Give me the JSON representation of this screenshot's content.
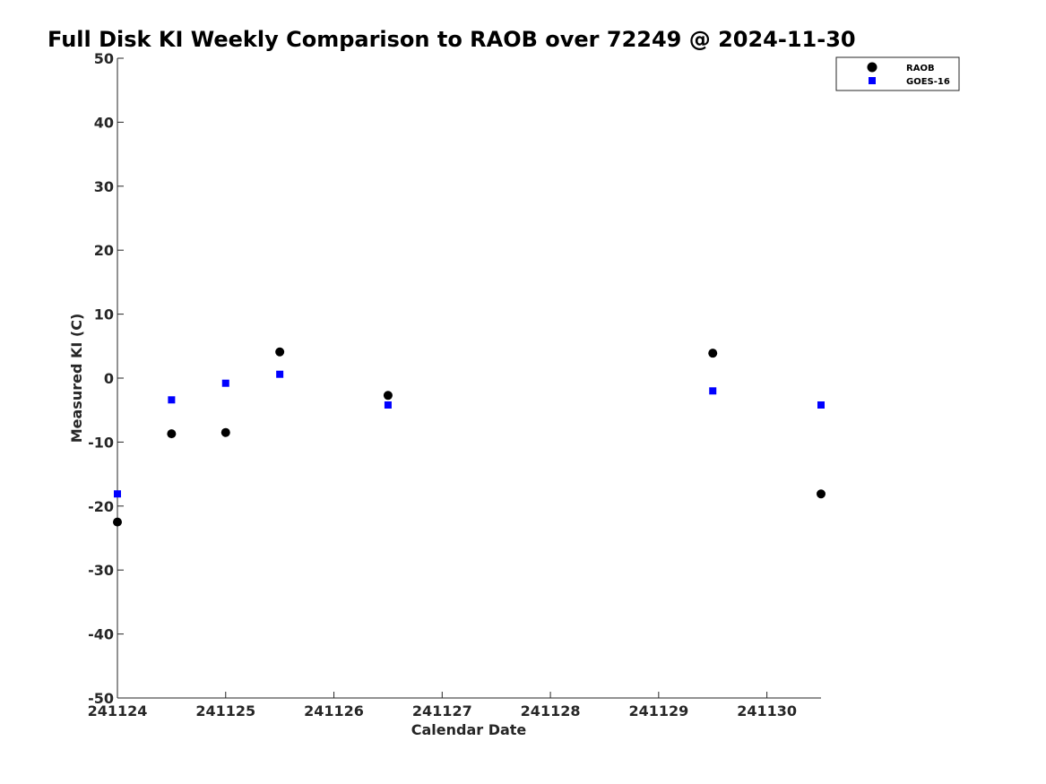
{
  "chart_data": {
    "type": "scatter",
    "title": "Full Disk KI Weekly Comparison to RAOB over 72249 @ 2024-11-30",
    "xlabel": "Calendar Date",
    "ylabel": "Measured KI (C)",
    "x_ticks": [
      "241124",
      "241125",
      "241126",
      "241127",
      "241128",
      "241129",
      "241130"
    ],
    "xlim": [
      "2024-11-24T00:00",
      "2024-11-30T12:00"
    ],
    "ylim": [
      -50,
      50
    ],
    "y_ticks": [
      50,
      40,
      30,
      20,
      10,
      0,
      -10,
      -20,
      -30,
      -40,
      -50
    ],
    "grid": false,
    "legend_position": "top-right",
    "series": [
      {
        "name": "RAOB",
        "marker": "circle",
        "color": "#000000",
        "points": [
          {
            "x": "2024-11-24T00:00",
            "y": -22.5
          },
          {
            "x": "2024-11-24T12:00",
            "y": -8.7
          },
          {
            "x": "2024-11-25T00:00",
            "y": -8.5
          },
          {
            "x": "2024-11-25T12:00",
            "y": 4.1
          },
          {
            "x": "2024-11-26T12:00",
            "y": -2.7
          },
          {
            "x": "2024-11-29T12:00",
            "y": 3.9
          },
          {
            "x": "2024-11-30T12:00",
            "y": -18.1
          }
        ]
      },
      {
        "name": "GOES-16",
        "marker": "square",
        "color": "#0000ff",
        "points": [
          {
            "x": "2024-11-24T00:00",
            "y": -18.1
          },
          {
            "x": "2024-11-24T12:00",
            "y": -3.4
          },
          {
            "x": "2024-11-25T00:00",
            "y": -0.8
          },
          {
            "x": "2024-11-25T12:00",
            "y": 0.6
          },
          {
            "x": "2024-11-26T12:00",
            "y": -4.2
          },
          {
            "x": "2024-11-29T12:00",
            "y": -2.0
          },
          {
            "x": "2024-11-30T12:00",
            "y": -4.2
          }
        ]
      }
    ]
  }
}
